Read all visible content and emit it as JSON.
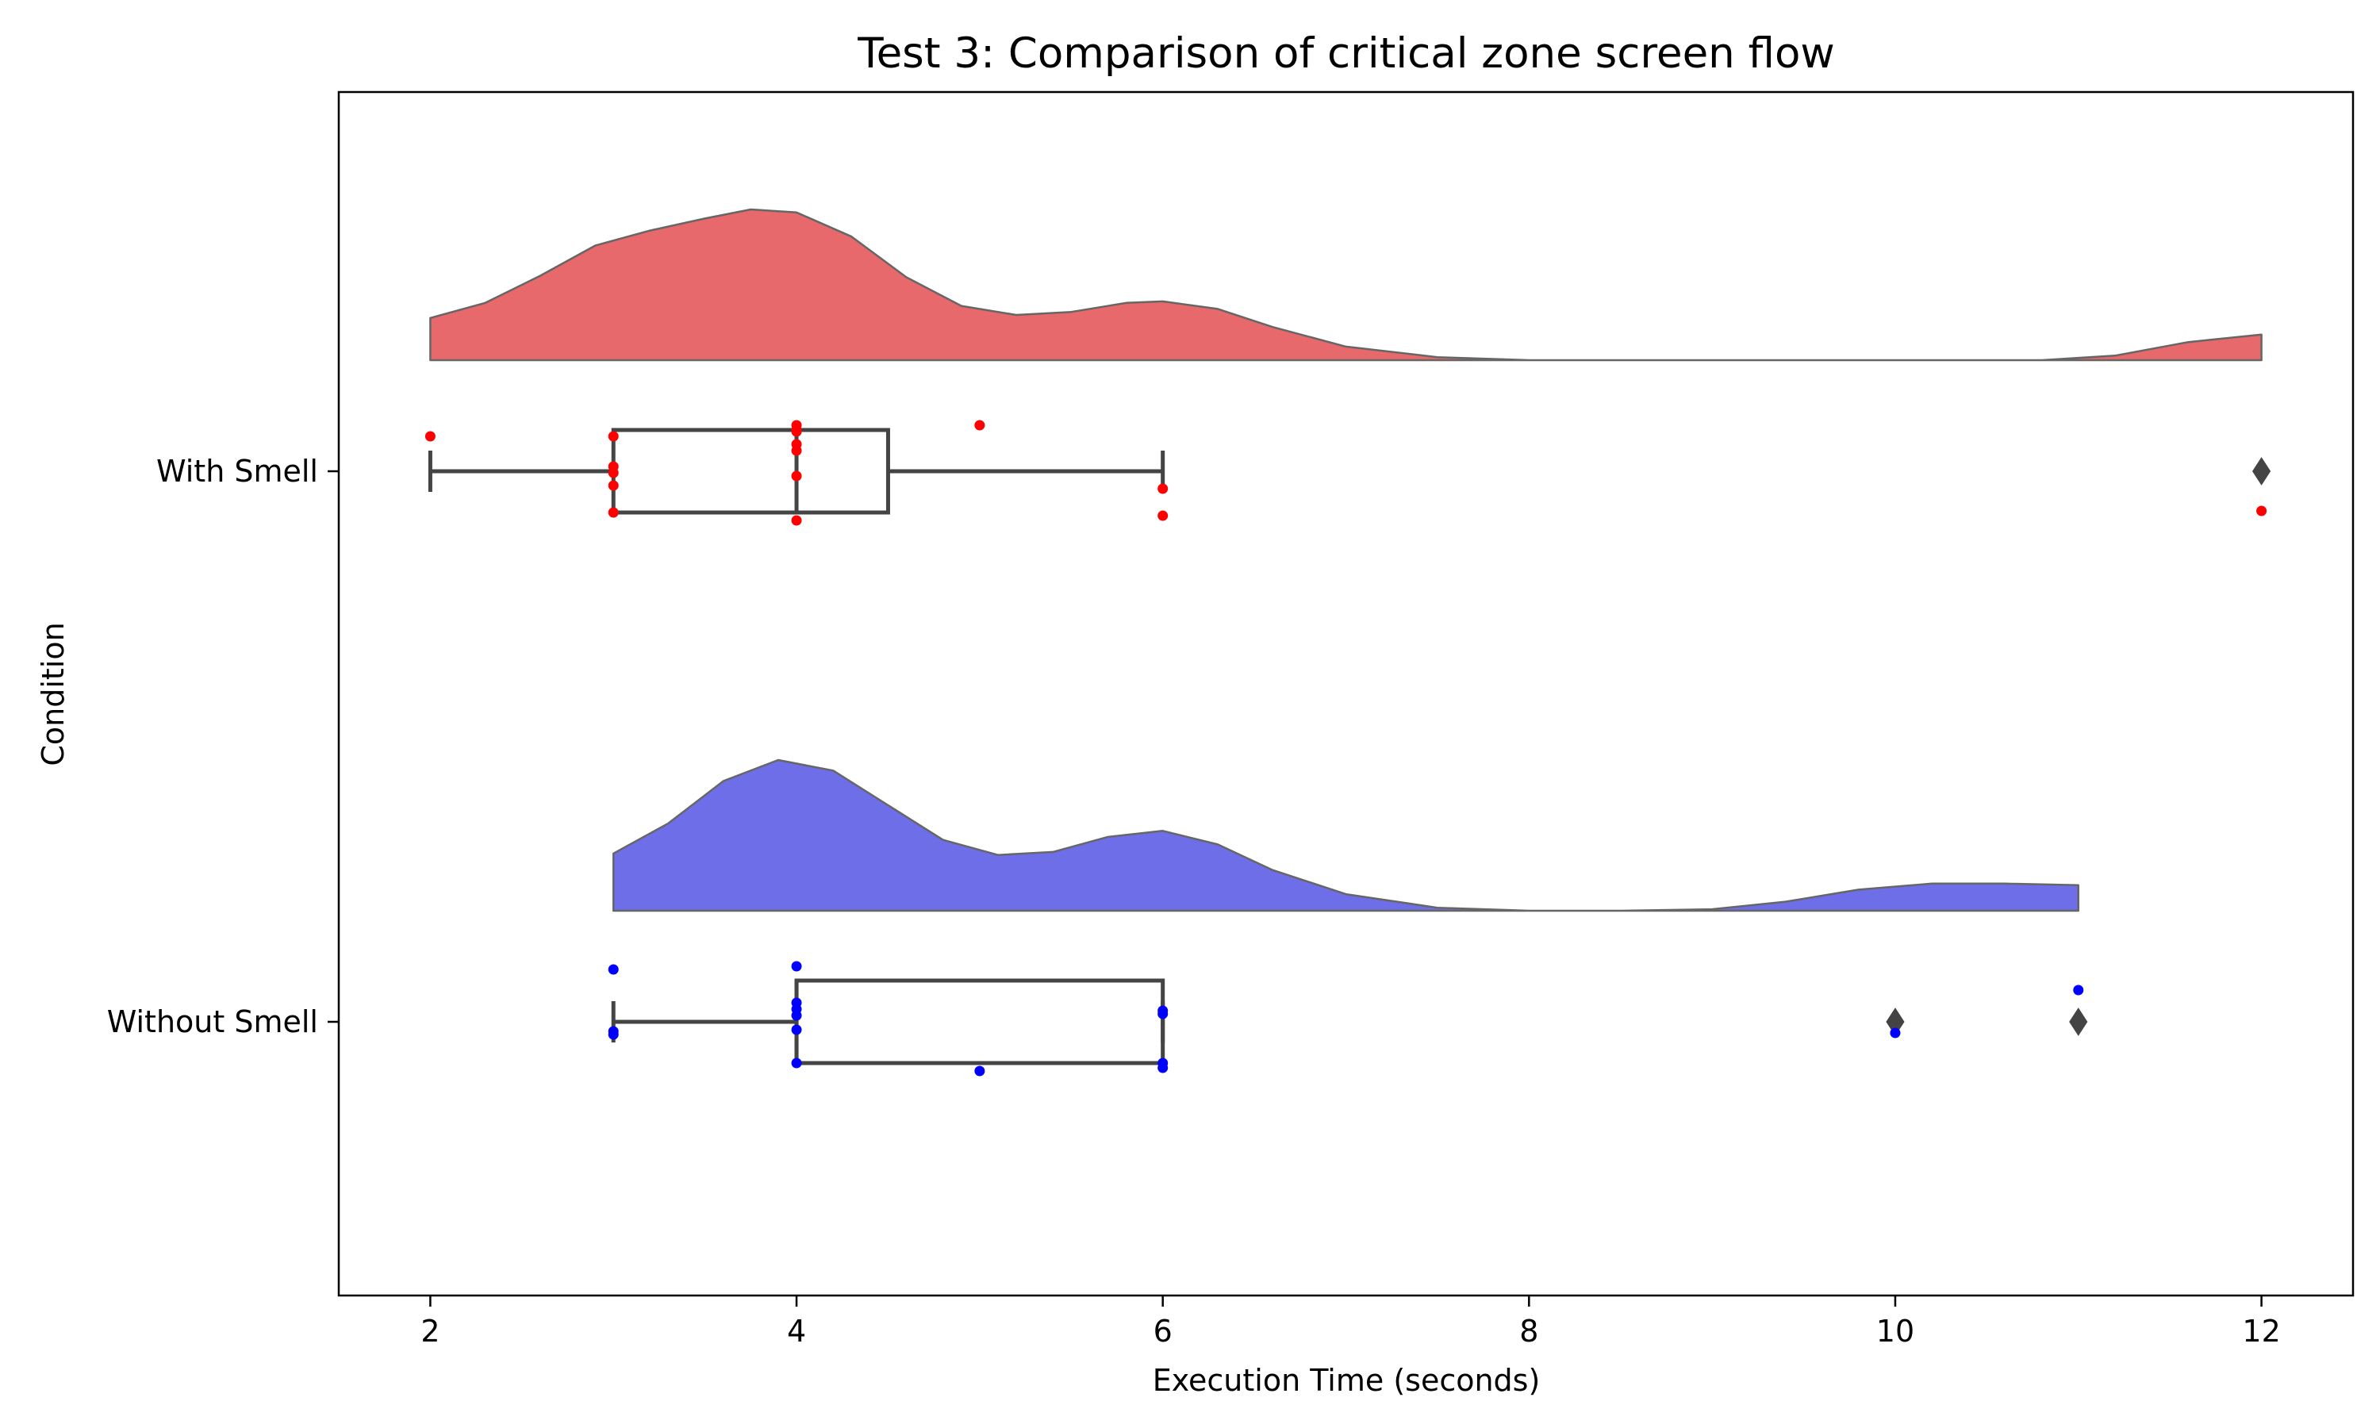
{
  "chart_data": {
    "type": "raincloud",
    "title": "Test 3: Comparison of critical zone screen flow",
    "xlabel": "Execution Time (seconds)",
    "ylabel": "Condition",
    "xlim": [
      1.5,
      12.5
    ],
    "xticks": [
      2,
      4,
      6,
      8,
      10,
      12
    ],
    "xtick_labels": [
      "2",
      "4",
      "6",
      "8",
      "10",
      "12"
    ],
    "grid": false,
    "series": [
      {
        "name": "With Smell",
        "color": "#e8696b",
        "point_color": "#ff0000",
        "box": {
          "whisker_low": 2,
          "q1": 3,
          "median": 4,
          "q3": 4.5,
          "whisker_high": 6
        },
        "outliers": [
          12
        ],
        "points": [
          2,
          3,
          3,
          3,
          3,
          3,
          4,
          4,
          4,
          4,
          4,
          4,
          4,
          5,
          6,
          6,
          12
        ],
        "density": [
          [
            2.0,
            0.28
          ],
          [
            2.3,
            0.38
          ],
          [
            2.6,
            0.56
          ],
          [
            2.9,
            0.76
          ],
          [
            3.2,
            0.86
          ],
          [
            3.5,
            0.94
          ],
          [
            3.75,
            1.0
          ],
          [
            4.0,
            0.98
          ],
          [
            4.3,
            0.82
          ],
          [
            4.6,
            0.55
          ],
          [
            4.9,
            0.36
          ],
          [
            5.2,
            0.3
          ],
          [
            5.5,
            0.32
          ],
          [
            5.8,
            0.38
          ],
          [
            6.0,
            0.39
          ],
          [
            6.3,
            0.34
          ],
          [
            6.6,
            0.22
          ],
          [
            7.0,
            0.09
          ],
          [
            7.5,
            0.02
          ],
          [
            8.0,
            0.0
          ],
          [
            9.0,
            0.0
          ],
          [
            10.0,
            0.0
          ],
          [
            10.8,
            0.0
          ],
          [
            11.2,
            0.03
          ],
          [
            11.6,
            0.12
          ],
          [
            12.0,
            0.17
          ]
        ]
      },
      {
        "name": "Without Smell",
        "color": "#6e6ee8",
        "point_color": "#0000ff",
        "box": {
          "whisker_low": 3,
          "q1": 4,
          "median": 4,
          "q3": 6,
          "whisker_high": 6
        },
        "outliers": [
          10,
          11
        ],
        "points": [
          3,
          3,
          3,
          4,
          4,
          4,
          4,
          4,
          4,
          5,
          6,
          6,
          6,
          6,
          10,
          11
        ],
        "density": [
          [
            3.0,
            0.38
          ],
          [
            3.3,
            0.58
          ],
          [
            3.6,
            0.86
          ],
          [
            3.9,
            1.0
          ],
          [
            4.2,
            0.93
          ],
          [
            4.5,
            0.7
          ],
          [
            4.8,
            0.47
          ],
          [
            5.1,
            0.37
          ],
          [
            5.4,
            0.39
          ],
          [
            5.7,
            0.49
          ],
          [
            6.0,
            0.53
          ],
          [
            6.3,
            0.44
          ],
          [
            6.6,
            0.27
          ],
          [
            7.0,
            0.11
          ],
          [
            7.5,
            0.02
          ],
          [
            8.0,
            0.0
          ],
          [
            8.5,
            0.0
          ],
          [
            9.0,
            0.01
          ],
          [
            9.4,
            0.06
          ],
          [
            9.8,
            0.14
          ],
          [
            10.2,
            0.18
          ],
          [
            10.6,
            0.18
          ],
          [
            11.0,
            0.17
          ]
        ]
      }
    ]
  }
}
